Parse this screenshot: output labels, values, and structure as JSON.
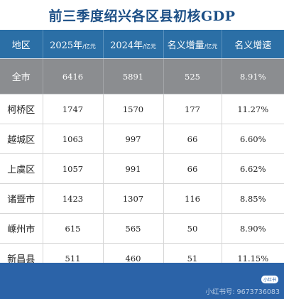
{
  "title": "前三季度绍兴各区县初核GDP",
  "table": {
    "headers": [
      {
        "main": "地区",
        "unit": ""
      },
      {
        "main": "2025年",
        "unit": "/亿元"
      },
      {
        "main": "2024年",
        "unit": "/亿元"
      },
      {
        "main": "名义增量",
        "unit": "/亿元"
      },
      {
        "main": "名义增速",
        "unit": ""
      }
    ],
    "rows": [
      {
        "region": "全市",
        "y2025": "6416",
        "y2024": "5891",
        "increase": "525",
        "growth": "8.91%"
      },
      {
        "region": "柯桥区",
        "y2025": "1747",
        "y2024": "1570",
        "increase": "177",
        "growth": "11.27%"
      },
      {
        "region": "越城区",
        "y2025": "1063",
        "y2024": "997",
        "increase": "66",
        "growth": "6.60%"
      },
      {
        "region": "上虞区",
        "y2025": "1057",
        "y2024": "991",
        "increase": "66",
        "growth": "6.62%"
      },
      {
        "region": "诸暨市",
        "y2025": "1423",
        "y2024": "1307",
        "increase": "116",
        "growth": "8.85%"
      },
      {
        "region": "嵊州市",
        "y2025": "615",
        "y2024": "565",
        "increase": "50",
        "growth": "8.90%"
      },
      {
        "region": "新昌县",
        "y2025": "511",
        "y2024": "460",
        "increase": "51",
        "growth": "11.15%"
      }
    ]
  },
  "footer": {
    "badge": "小红书",
    "watermark": "小红书号: 9673736083"
  },
  "colors": {
    "title": "#1c4f86",
    "header_bg": "#2b6fa6",
    "total_row_bg": "#8b8d90",
    "footer_bg": "#2b63a8"
  }
}
